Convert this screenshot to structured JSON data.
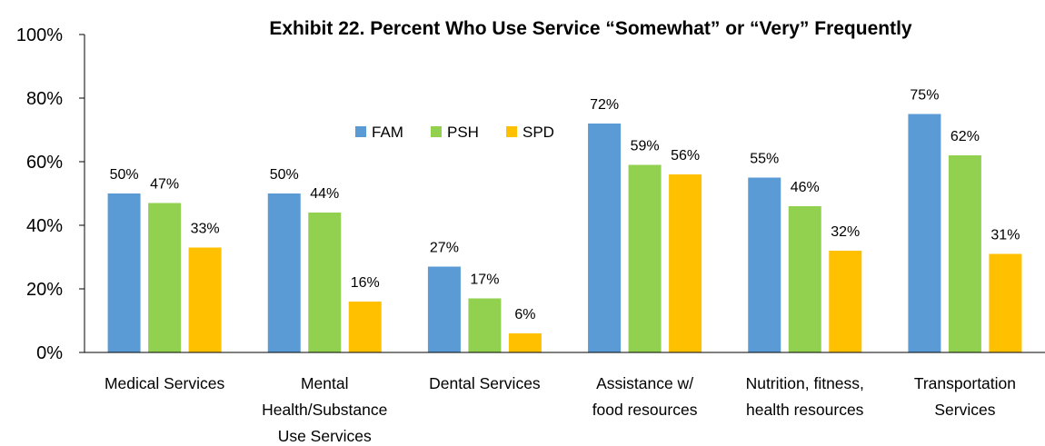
{
  "chart_data": {
    "type": "bar",
    "title": "Exhibit 22.  Percent Who Use Service “Somewhat” or “Very” Frequently",
    "xlabel": "",
    "ylabel": "",
    "ylim": [
      0,
      100
    ],
    "yticks": [
      "0%",
      "20%",
      "40%",
      "60%",
      "80%",
      "100%"
    ],
    "grid": false,
    "legend_position": "top-center",
    "categories": [
      [
        "Medical Services"
      ],
      [
        "Mental",
        "Health/Substance",
        "Use Services"
      ],
      [
        "Dental Services"
      ],
      [
        "Assistance w/",
        "food resources"
      ],
      [
        "Nutrition, fitness,",
        "health resources"
      ],
      [
        "Transportation",
        "Services"
      ]
    ],
    "series": [
      {
        "name": "FAM",
        "color": "#5b9bd5",
        "values": [
          50,
          50,
          27,
          72,
          55,
          75
        ],
        "labels": [
          "50%",
          "50%",
          "27%",
          "72%",
          "55%",
          "75%"
        ]
      },
      {
        "name": "PSH",
        "color": "#92d050",
        "values": [
          47,
          44,
          17,
          59,
          46,
          62
        ],
        "labels": [
          "47%",
          "44%",
          "17%",
          "59%",
          "46%",
          "62%"
        ]
      },
      {
        "name": "SPD",
        "color": "#ffc000",
        "values": [
          33,
          16,
          6,
          56,
          32,
          31
        ],
        "labels": [
          "33%",
          "16%",
          "6%",
          "56%",
          "32%",
          "31%"
        ]
      }
    ]
  }
}
